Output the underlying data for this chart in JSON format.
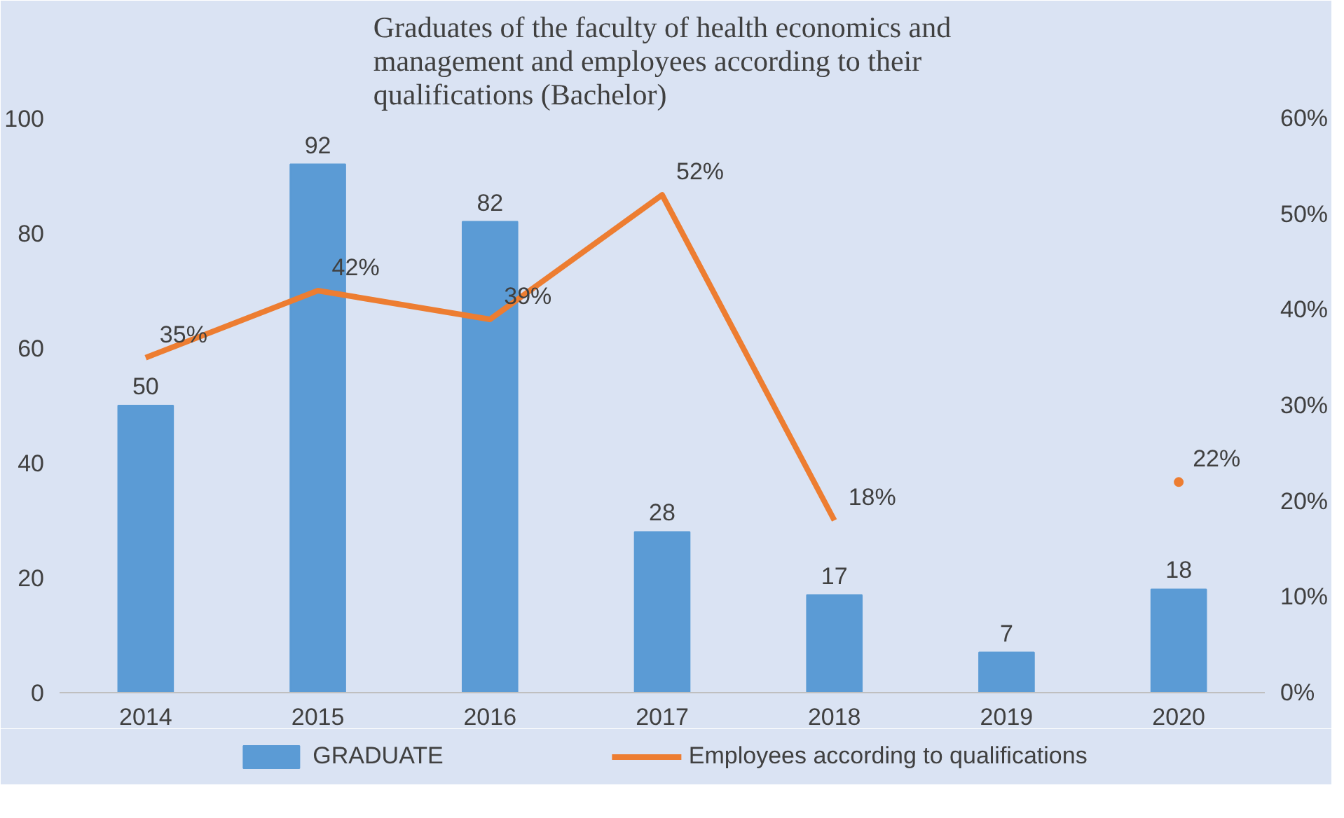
{
  "chart_data": {
    "type": "bar",
    "title": "Graduates of the faculty of health economics and management and employees according to their qualifications (Bachelor)",
    "categories": [
      "2014",
      "2015",
      "2016",
      "2017",
      "2018",
      "2019",
      "2020"
    ],
    "series": [
      {
        "name": "GRADUATE",
        "color": "#5b9bd5",
        "values": [
          50,
          92,
          82,
          28,
          17,
          7,
          18
        ],
        "value_labels": [
          "50",
          "92",
          "82",
          "28",
          "17",
          "7",
          "18"
        ]
      },
      {
        "name": "Employees according to qualifications",
        "type": "line",
        "axis": "y2",
        "color": "#ed7d31",
        "values": [
          35,
          42,
          39,
          52,
          18,
          null,
          22
        ],
        "value_labels": [
          "35%",
          "42%",
          "39%",
          "52%",
          "18%",
          null,
          "22%"
        ]
      }
    ],
    "ylim": [
      0,
      100
    ],
    "yticks": [
      0,
      20,
      40,
      60,
      80,
      100
    ],
    "y2lim": [
      0,
      60
    ],
    "y2ticks": [
      {
        "value": 0,
        "label": "0%"
      },
      {
        "value": 10,
        "label": "10%"
      },
      {
        "value": 20,
        "label": "20%"
      },
      {
        "value": 30,
        "label": "30%"
      },
      {
        "value": 40,
        "label": "40%"
      },
      {
        "value": 50,
        "label": "50%"
      },
      {
        "value": 60,
        "label": "60%"
      }
    ],
    "grid": false,
    "legend": "bottom"
  }
}
